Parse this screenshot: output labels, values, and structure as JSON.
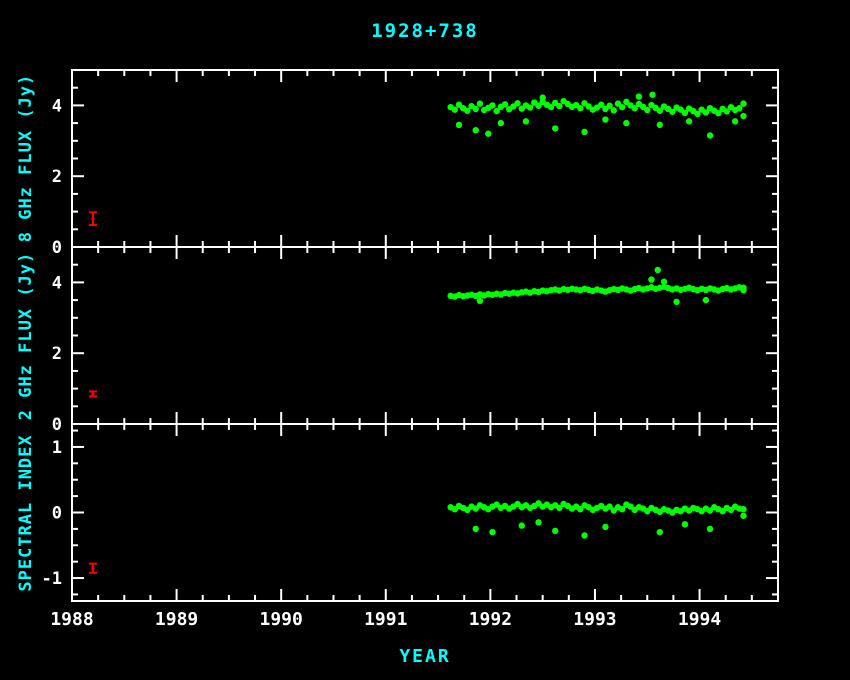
{
  "title": "1928+738",
  "xlabel": "YEAR",
  "colors": {
    "background": "#000000",
    "axis": "#ffffff",
    "tick_label": "#ffffff",
    "axis_label": "#00ffff",
    "title": "#00ffff",
    "data_point": "#00ff00",
    "error_bar": "#ff0000"
  },
  "x_axis": {
    "min": 1988,
    "max": 1994.75,
    "major_ticks": [
      1988,
      1989,
      1990,
      1991,
      1992,
      1993,
      1994
    ],
    "minor_step": 0.25
  },
  "chart_data": [
    {
      "type": "scatter",
      "name": "flux-8ghz",
      "ylabel": "8 GHz FLUX (Jy)",
      "ylim": [
        0,
        5
      ],
      "major_ticks": [
        0,
        2,
        4
      ],
      "minor_step": 0.5,
      "reference_error_bar": {
        "x": 1988.2,
        "y": 0.8,
        "err": 0.18
      },
      "points": [
        [
          1991.62,
          3.95
        ],
        [
          1991.66,
          3.88
        ],
        [
          1991.7,
          4.02
        ],
        [
          1991.74,
          3.92
        ],
        [
          1991.78,
          3.85
        ],
        [
          1991.82,
          3.98
        ],
        [
          1991.86,
          3.9
        ],
        [
          1991.9,
          4.05
        ],
        [
          1991.94,
          3.87
        ],
        [
          1991.98,
          3.93
        ],
        [
          1992.02,
          4.0
        ],
        [
          1992.06,
          3.84
        ],
        [
          1992.1,
          3.96
        ],
        [
          1992.14,
          4.03
        ],
        [
          1992.18,
          3.89
        ],
        [
          1992.22,
          3.97
        ],
        [
          1992.26,
          4.06
        ],
        [
          1992.3,
          3.91
        ],
        [
          1992.34,
          4.0
        ],
        [
          1992.38,
          3.94
        ],
        [
          1992.42,
          4.08
        ],
        [
          1992.46,
          3.99
        ],
        [
          1992.5,
          4.1
        ],
        [
          1992.54,
          4.02
        ],
        [
          1992.58,
          3.95
        ],
        [
          1992.62,
          4.07
        ],
        [
          1992.66,
          3.98
        ],
        [
          1992.7,
          4.12
        ],
        [
          1992.74,
          4.04
        ],
        [
          1992.78,
          3.96
        ],
        [
          1992.82,
          4.01
        ],
        [
          1992.86,
          3.92
        ],
        [
          1992.9,
          4.06
        ],
        [
          1992.94,
          3.97
        ],
        [
          1992.98,
          3.88
        ],
        [
          1993.02,
          3.94
        ],
        [
          1993.06,
          4.02
        ],
        [
          1993.1,
          3.9
        ],
        [
          1993.14,
          3.99
        ],
        [
          1993.18,
          3.86
        ],
        [
          1993.22,
          4.05
        ],
        [
          1993.26,
          3.95
        ],
        [
          1993.3,
          4.1
        ],
        [
          1993.34,
          4.0
        ],
        [
          1993.38,
          3.92
        ],
        [
          1993.42,
          4.04
        ],
        [
          1993.46,
          3.96
        ],
        [
          1993.5,
          3.87
        ],
        [
          1993.54,
          4.01
        ],
        [
          1993.58,
          3.93
        ],
        [
          1993.62,
          3.85
        ],
        [
          1993.66,
          3.97
        ],
        [
          1993.7,
          3.9
        ],
        [
          1993.74,
          3.82
        ],
        [
          1993.78,
          3.94
        ],
        [
          1993.82,
          3.88
        ],
        [
          1993.86,
          3.79
        ],
        [
          1993.9,
          3.91
        ],
        [
          1993.94,
          3.84
        ],
        [
          1993.98,
          3.76
        ],
        [
          1994.02,
          3.88
        ],
        [
          1994.06,
          3.8
        ],
        [
          1994.1,
          3.92
        ],
        [
          1994.14,
          3.85
        ],
        [
          1994.18,
          3.78
        ],
        [
          1994.22,
          3.9
        ],
        [
          1994.26,
          3.83
        ],
        [
          1994.3,
          3.95
        ],
        [
          1994.34,
          3.87
        ],
        [
          1994.38,
          3.92
        ],
        [
          1991.7,
          3.45
        ],
        [
          1991.86,
          3.3
        ],
        [
          1991.98,
          3.2
        ],
        [
          1992.1,
          3.5
        ],
        [
          1992.34,
          3.55
        ],
        [
          1992.5,
          4.22
        ],
        [
          1992.62,
          3.35
        ],
        [
          1992.9,
          3.25
        ],
        [
          1993.1,
          3.6
        ],
        [
          1993.3,
          3.5
        ],
        [
          1993.42,
          4.25
        ],
        [
          1993.55,
          4.3
        ],
        [
          1993.62,
          3.45
        ],
        [
          1993.9,
          3.55
        ],
        [
          1994.1,
          3.15
        ],
        [
          1994.34,
          3.55
        ],
        [
          1994.42,
          4.05
        ],
        [
          1994.42,
          3.7
        ]
      ]
    },
    {
      "type": "scatter",
      "name": "flux-2ghz",
      "ylabel": "2 GHz FLUX (Jy)",
      "ylim": [
        0,
        5
      ],
      "major_ticks": [
        0,
        2,
        4
      ],
      "minor_step": 0.5,
      "reference_error_bar": {
        "x": 1988.2,
        "y": 0.85,
        "err": 0.07
      },
      "points": [
        [
          1991.62,
          3.62
        ],
        [
          1991.66,
          3.6
        ],
        [
          1991.7,
          3.64
        ],
        [
          1991.74,
          3.61
        ],
        [
          1991.78,
          3.63
        ],
        [
          1991.82,
          3.65
        ],
        [
          1991.86,
          3.62
        ],
        [
          1991.9,
          3.66
        ],
        [
          1991.94,
          3.63
        ],
        [
          1991.98,
          3.67
        ],
        [
          1992.02,
          3.65
        ],
        [
          1992.06,
          3.68
        ],
        [
          1992.1,
          3.66
        ],
        [
          1992.14,
          3.7
        ],
        [
          1992.18,
          3.68
        ],
        [
          1992.22,
          3.71
        ],
        [
          1992.26,
          3.69
        ],
        [
          1992.3,
          3.72
        ],
        [
          1992.34,
          3.74
        ],
        [
          1992.38,
          3.71
        ],
        [
          1992.42,
          3.75
        ],
        [
          1992.46,
          3.73
        ],
        [
          1992.5,
          3.77
        ],
        [
          1992.54,
          3.75
        ],
        [
          1992.58,
          3.78
        ],
        [
          1992.62,
          3.8
        ],
        [
          1992.66,
          3.77
        ],
        [
          1992.7,
          3.81
        ],
        [
          1992.74,
          3.79
        ],
        [
          1992.78,
          3.82
        ],
        [
          1992.82,
          3.8
        ],
        [
          1992.86,
          3.78
        ],
        [
          1992.9,
          3.82
        ],
        [
          1992.94,
          3.79
        ],
        [
          1992.98,
          3.76
        ],
        [
          1993.02,
          3.8
        ],
        [
          1993.06,
          3.77
        ],
        [
          1993.1,
          3.74
        ],
        [
          1993.14,
          3.78
        ],
        [
          1993.18,
          3.81
        ],
        [
          1993.22,
          3.79
        ],
        [
          1993.26,
          3.83
        ],
        [
          1993.3,
          3.8
        ],
        [
          1993.34,
          3.77
        ],
        [
          1993.38,
          3.81
        ],
        [
          1993.42,
          3.84
        ],
        [
          1993.46,
          3.8
        ],
        [
          1993.5,
          3.83
        ],
        [
          1993.54,
          3.86
        ],
        [
          1993.58,
          3.82
        ],
        [
          1993.62,
          3.85
        ],
        [
          1993.66,
          3.88
        ],
        [
          1993.7,
          3.84
        ],
        [
          1993.74,
          3.8
        ],
        [
          1993.78,
          3.83
        ],
        [
          1993.82,
          3.79
        ],
        [
          1993.86,
          3.82
        ],
        [
          1993.9,
          3.85
        ],
        [
          1993.94,
          3.81
        ],
        [
          1993.98,
          3.78
        ],
        [
          1994.02,
          3.82
        ],
        [
          1994.06,
          3.79
        ],
        [
          1994.1,
          3.83
        ],
        [
          1994.14,
          3.8
        ],
        [
          1994.18,
          3.77
        ],
        [
          1994.22,
          3.81
        ],
        [
          1994.26,
          3.84
        ],
        [
          1994.3,
          3.8
        ],
        [
          1994.34,
          3.83
        ],
        [
          1994.38,
          3.86
        ],
        [
          1991.9,
          3.48
        ],
        [
          1993.54,
          4.08
        ],
        [
          1993.6,
          4.35
        ],
        [
          1993.66,
          4.02
        ],
        [
          1993.78,
          3.45
        ],
        [
          1994.06,
          3.5
        ],
        [
          1994.42,
          3.85
        ],
        [
          1994.42,
          3.78
        ]
      ]
    },
    {
      "type": "scatter",
      "name": "spectral-index",
      "ylabel": "SPECTRAL INDEX",
      "ylim": [
        -1.35,
        1.35
      ],
      "major_ticks": [
        -1,
        0,
        1
      ],
      "minor_step": 0.25,
      "reference_error_bar": {
        "x": 1988.2,
        "y": -0.85,
        "err": 0.07
      },
      "points": [
        [
          1991.62,
          0.08
        ],
        [
          1991.66,
          0.05
        ],
        [
          1991.7,
          0.1
        ],
        [
          1991.74,
          0.07
        ],
        [
          1991.78,
          0.04
        ],
        [
          1991.82,
          0.09
        ],
        [
          1991.86,
          0.06
        ],
        [
          1991.9,
          0.11
        ],
        [
          1991.94,
          0.08
        ],
        [
          1991.98,
          0.05
        ],
        [
          1992.02,
          0.09
        ],
        [
          1992.06,
          0.12
        ],
        [
          1992.1,
          0.07
        ],
        [
          1992.14,
          0.1
        ],
        [
          1992.18,
          0.06
        ],
        [
          1992.22,
          0.09
        ],
        [
          1992.26,
          0.13
        ],
        [
          1992.3,
          0.08
        ],
        [
          1992.34,
          0.11
        ],
        [
          1992.38,
          0.07
        ],
        [
          1992.42,
          0.1
        ],
        [
          1992.46,
          0.14
        ],
        [
          1992.5,
          0.09
        ],
        [
          1992.54,
          0.12
        ],
        [
          1992.58,
          0.08
        ],
        [
          1992.62,
          0.11
        ],
        [
          1992.66,
          0.07
        ],
        [
          1992.7,
          0.13
        ],
        [
          1992.74,
          0.1
        ],
        [
          1992.78,
          0.06
        ],
        [
          1992.82,
          0.09
        ],
        [
          1992.86,
          0.05
        ],
        [
          1992.9,
          0.11
        ],
        [
          1992.94,
          0.08
        ],
        [
          1992.98,
          0.04
        ],
        [
          1993.02,
          0.07
        ],
        [
          1993.06,
          0.1
        ],
        [
          1993.1,
          0.06
        ],
        [
          1993.14,
          0.09
        ],
        [
          1993.18,
          0.03
        ],
        [
          1993.22,
          0.08
        ],
        [
          1993.26,
          0.05
        ],
        [
          1993.3,
          0.12
        ],
        [
          1993.34,
          0.09
        ],
        [
          1993.38,
          0.04
        ],
        [
          1993.42,
          0.08
        ],
        [
          1993.46,
          0.06
        ],
        [
          1993.5,
          0.02
        ],
        [
          1993.54,
          0.07
        ],
        [
          1993.58,
          0.04
        ],
        [
          1993.62,
          0.01
        ],
        [
          1993.66,
          0.05
        ],
        [
          1993.7,
          0.03
        ],
        [
          1993.74,
          0.0
        ],
        [
          1993.78,
          0.04
        ],
        [
          1993.82,
          0.02
        ],
        [
          1993.86,
          0.06
        ],
        [
          1993.9,
          0.03
        ],
        [
          1993.94,
          0.07
        ],
        [
          1993.98,
          0.05
        ],
        [
          1994.02,
          0.02
        ],
        [
          1994.06,
          0.06
        ],
        [
          1994.1,
          0.03
        ],
        [
          1994.14,
          0.08
        ],
        [
          1994.18,
          0.05
        ],
        [
          1994.22,
          0.02
        ],
        [
          1994.26,
          0.07
        ],
        [
          1994.3,
          0.04
        ],
        [
          1994.34,
          0.09
        ],
        [
          1994.38,
          0.06
        ],
        [
          1991.86,
          -0.25
        ],
        [
          1992.02,
          -0.3
        ],
        [
          1992.3,
          -0.2
        ],
        [
          1992.46,
          -0.15
        ],
        [
          1992.62,
          -0.28
        ],
        [
          1992.9,
          -0.35
        ],
        [
          1993.1,
          -0.22
        ],
        [
          1993.62,
          -0.3
        ],
        [
          1993.86,
          -0.18
        ],
        [
          1994.1,
          -0.25
        ],
        [
          1994.42,
          0.05
        ],
        [
          1994.42,
          -0.05
        ]
      ]
    }
  ]
}
